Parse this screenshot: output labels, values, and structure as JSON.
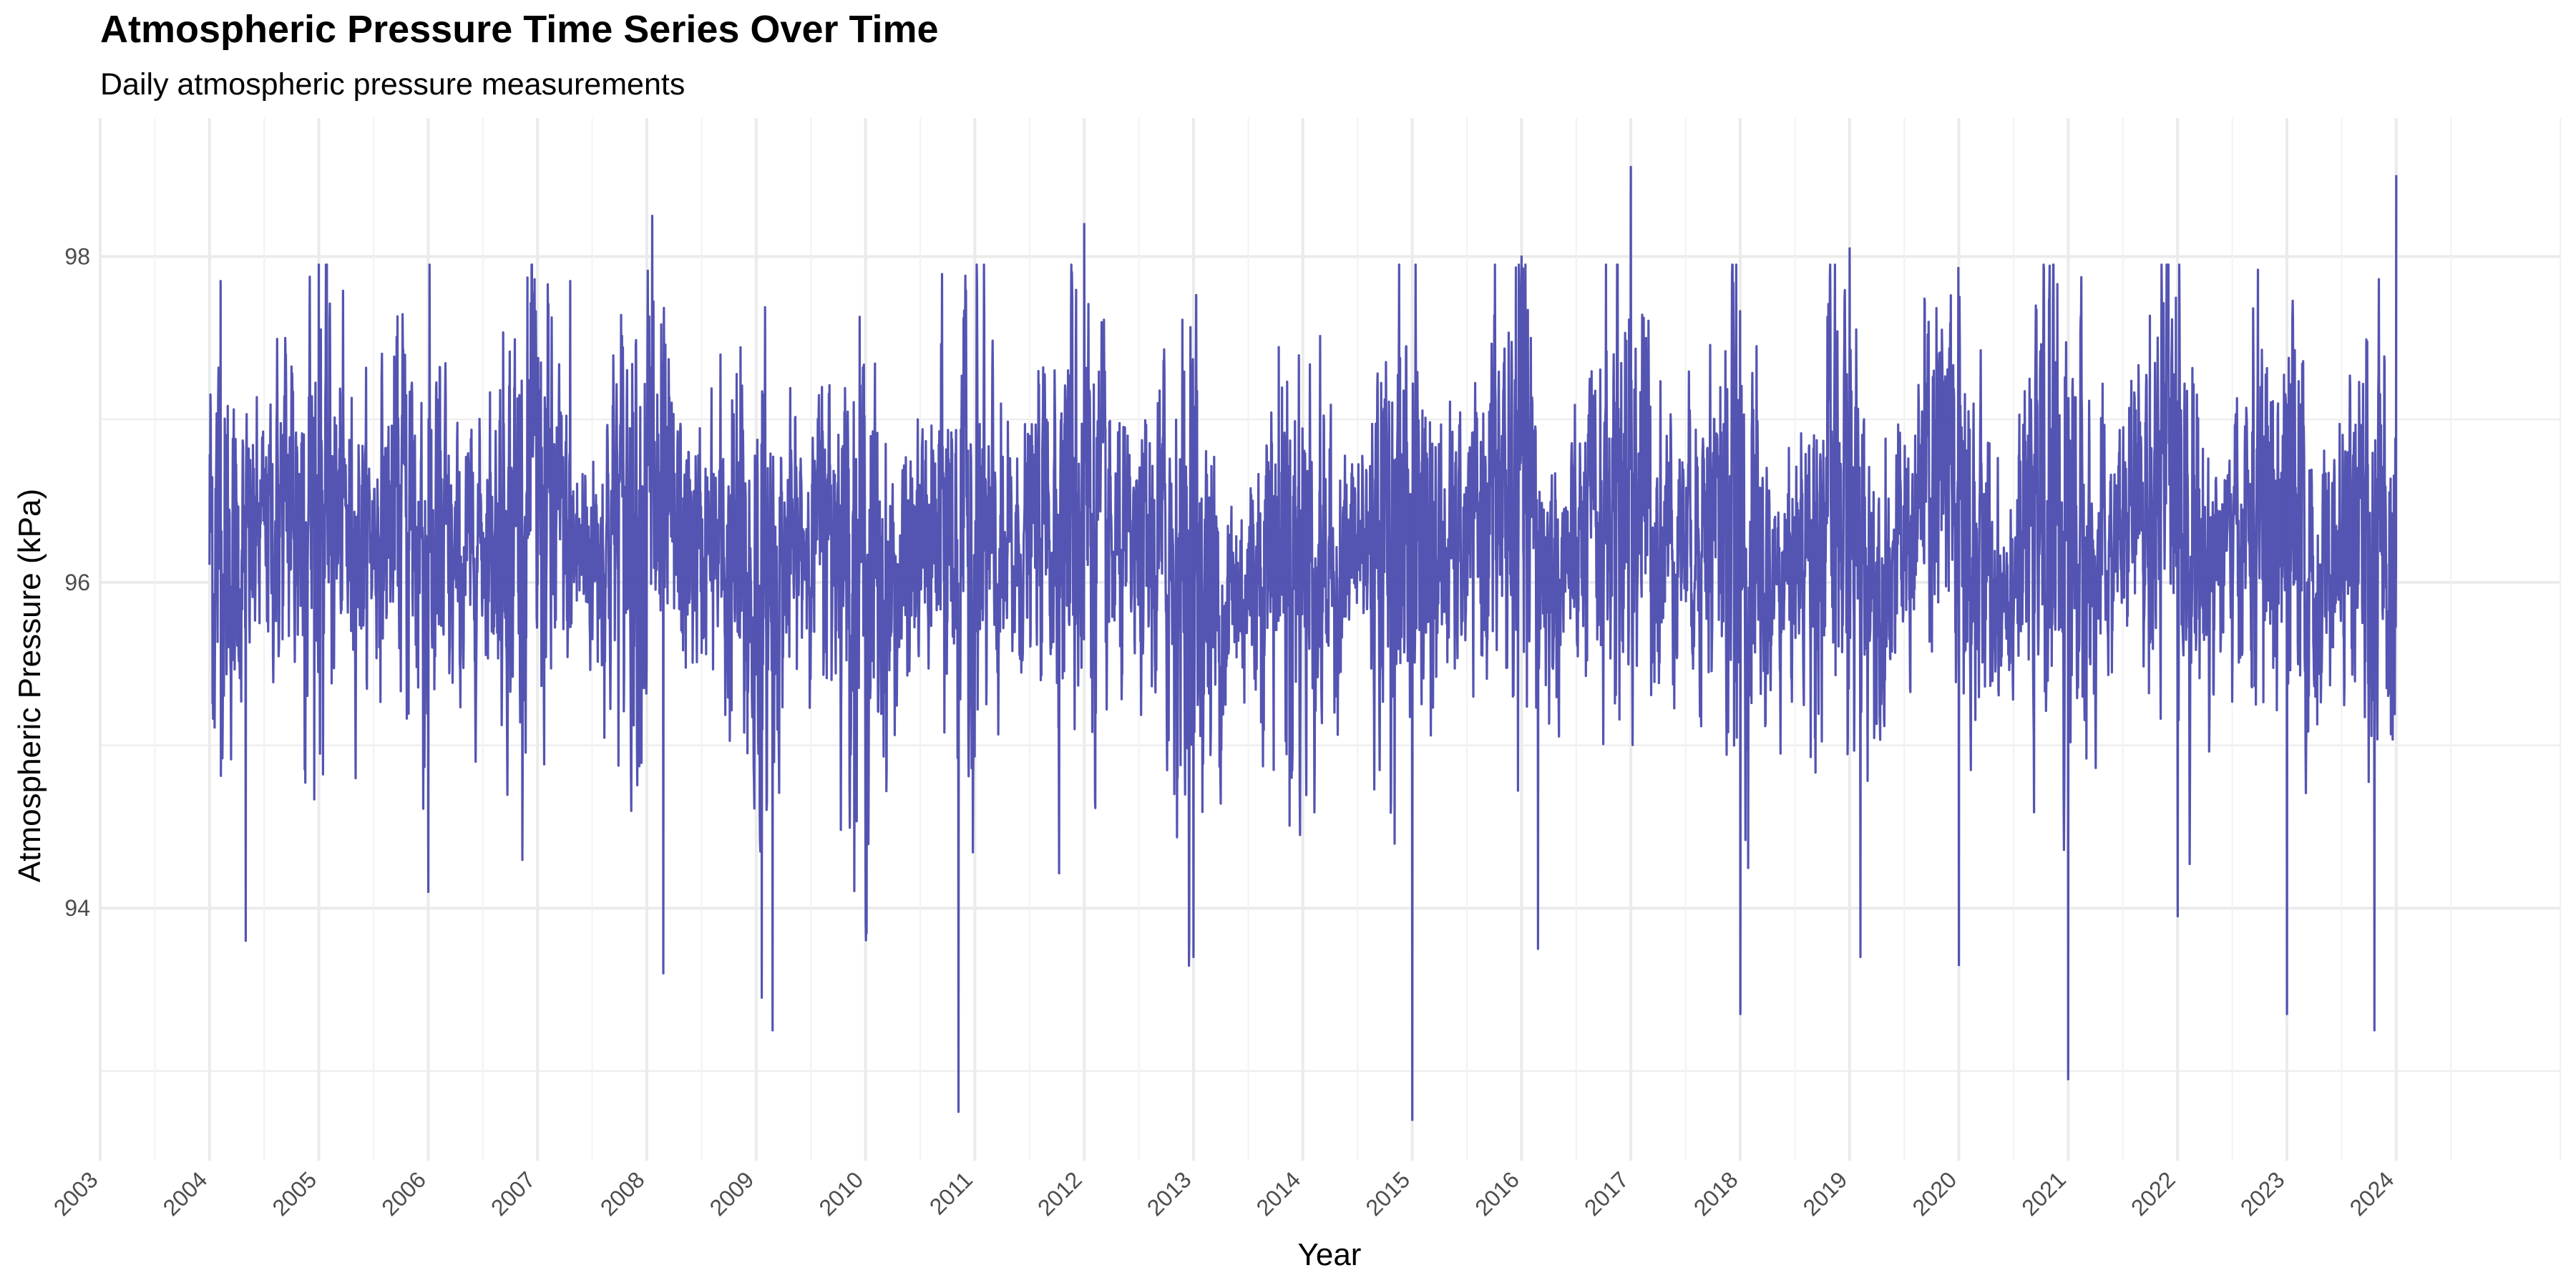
{
  "chart_data": {
    "type": "line",
    "title": "Atmospheric Pressure Time Series Over Time",
    "subtitle": "Daily atmospheric pressure measurements",
    "xlabel": "Year",
    "ylabel": "Atmospheric Pressure (kPa)",
    "xlim": [
      2003.0,
      2025.5
    ],
    "ylim": [
      92.45,
      98.85
    ],
    "x_ticks": [
      "2003",
      "2004",
      "2005",
      "2006",
      "2007",
      "2008",
      "2009",
      "2010",
      "2011",
      "2012",
      "2013",
      "2014",
      "2015",
      "2016",
      "2017",
      "2018",
      "2019",
      "2020",
      "2021",
      "2022",
      "2023",
      "2024"
    ],
    "y_ticks": [
      "94",
      "96",
      "98"
    ],
    "grid": true,
    "legend": "none",
    "line_color": "#4B4BAE",
    "sampling": "daily",
    "x_range": [
      2004.0,
      2024.0
    ],
    "series": [
      {
        "x": [
          2004.0,
          2004.25,
          2004.5,
          2004.75,
          2005.0,
          2005.25,
          2005.5,
          2005.75,
          2006.0,
          2006.25,
          2006.5,
          2006.75,
          2007.0,
          2007.25,
          2007.5,
          2007.75,
          2008.0,
          2008.25,
          2008.5,
          2008.75,
          2009.0,
          2009.25,
          2009.5,
          2009.75,
          2010.0,
          2010.25,
          2010.5,
          2010.75,
          2011.0,
          2011.25,
          2011.5,
          2011.75,
          2012.0,
          2012.25,
          2012.5,
          2012.75,
          2013.0,
          2013.25,
          2013.5,
          2013.75,
          2014.0,
          2014.25,
          2014.5,
          2014.75,
          2015.0,
          2015.25,
          2015.5,
          2015.75,
          2016.0,
          2016.25,
          2016.5,
          2016.75,
          2017.0,
          2017.25,
          2017.5,
          2017.75,
          2018.0,
          2018.25,
          2018.5,
          2018.75,
          2019.0,
          2019.25,
          2019.5,
          2019.75,
          2020.0,
          2020.25,
          2020.5,
          2020.75,
          2021.0,
          2021.25,
          2021.5,
          2021.75,
          2022.0,
          2022.25,
          2022.5,
          2022.75,
          2023.0,
          2023.25,
          2023.5,
          2023.75,
          2024.0
        ],
        "values": [
          96.3,
          96.1,
          96.3,
          96.5,
          96.5,
          96.3,
          96.3,
          96.5,
          96.2,
          96.0,
          96.3,
          96.4,
          96.5,
          96.2,
          96.2,
          96.4,
          96.5,
          96.2,
          96.2,
          96.1,
          95.9,
          96.1,
          96.3,
          96.4,
          96.0,
          95.9,
          96.2,
          96.3,
          96.2,
          96.0,
          96.3,
          96.5,
          96.6,
          96.1,
          96.1,
          96.2,
          96.1,
          95.8,
          96.0,
          96.3,
          96.2,
          96.0,
          96.2,
          96.3,
          96.4,
          96.1,
          96.2,
          96.5,
          96.5,
          96.0,
          96.1,
          96.4,
          96.7,
          96.3,
          96.3,
          96.4,
          96.3,
          95.9,
          96.1,
          96.4,
          96.4,
          96.0,
          96.2,
          96.6,
          96.5,
          96.0,
          96.1,
          96.4,
          96.4,
          96.0,
          96.3,
          96.5,
          96.7,
          96.1,
          96.2,
          96.4,
          96.3,
          95.9,
          96.2,
          96.2,
          96.2
        ],
        "spread": [
          1.0,
          0.6,
          0.45,
          0.8,
          1.0,
          0.6,
          0.45,
          0.75,
          1.05,
          0.55,
          0.45,
          0.8,
          1.0,
          0.6,
          0.45,
          0.8,
          1.1,
          0.6,
          0.45,
          0.8,
          1.05,
          0.55,
          0.45,
          0.75,
          1.0,
          0.55,
          0.45,
          0.8,
          1.0,
          0.55,
          0.45,
          0.8,
          1.1,
          0.55,
          0.45,
          0.8,
          1.05,
          0.55,
          0.45,
          0.8,
          1.0,
          0.55,
          0.45,
          0.8,
          1.05,
          0.55,
          0.45,
          0.8,
          1.05,
          0.55,
          0.45,
          0.8,
          1.1,
          0.6,
          0.45,
          0.8,
          1.05,
          0.55,
          0.45,
          0.8,
          1.0,
          0.55,
          0.45,
          0.8,
          1.05,
          0.55,
          0.45,
          0.8,
          1.05,
          0.55,
          0.45,
          0.8,
          1.05,
          0.55,
          0.45,
          0.8,
          1.05,
          0.55,
          0.45,
          0.8,
          1.0
        ],
        "peaks": [
          {
            "x": 2004.1,
            "y": 97.85
          },
          {
            "x": 2004.33,
            "y": 93.8
          },
          {
            "x": 2005.0,
            "y": 97.95
          },
          {
            "x": 2006.0,
            "y": 97.85
          },
          {
            "x": 2006.0,
            "y": 94.1
          },
          {
            "x": 2007.3,
            "y": 97.85
          },
          {
            "x": 2008.05,
            "y": 98.25
          },
          {
            "x": 2008.15,
            "y": 93.6
          },
          {
            "x": 2009.05,
            "y": 93.45
          },
          {
            "x": 2009.15,
            "y": 93.25
          },
          {
            "x": 2010.85,
            "y": 92.75
          },
          {
            "x": 2012.0,
            "y": 98.2
          },
          {
            "x": 2013.0,
            "y": 98.15
          },
          {
            "x": 2013.0,
            "y": 93.7
          },
          {
            "x": 2015.0,
            "y": 97.9
          },
          {
            "x": 2015.0,
            "y": 92.7
          },
          {
            "x": 2016.0,
            "y": 98.0
          },
          {
            "x": 2016.15,
            "y": 93.75
          },
          {
            "x": 2017.0,
            "y": 98.55
          },
          {
            "x": 2018.0,
            "y": 98.2
          },
          {
            "x": 2018.0,
            "y": 93.35
          },
          {
            "x": 2019.0,
            "y": 98.05
          },
          {
            "x": 2019.1,
            "y": 93.7
          },
          {
            "x": 2020.0,
            "y": 98.45
          },
          {
            "x": 2020.0,
            "y": 93.65
          },
          {
            "x": 2021.0,
            "y": 92.95
          },
          {
            "x": 2022.0,
            "y": 98.2
          },
          {
            "x": 2022.0,
            "y": 93.95
          },
          {
            "x": 2023.0,
            "y": 98.15
          },
          {
            "x": 2023.0,
            "y": 93.35
          },
          {
            "x": 2023.8,
            "y": 93.25
          },
          {
            "x": 2024.0,
            "y": 98.5
          }
        ]
      }
    ]
  }
}
